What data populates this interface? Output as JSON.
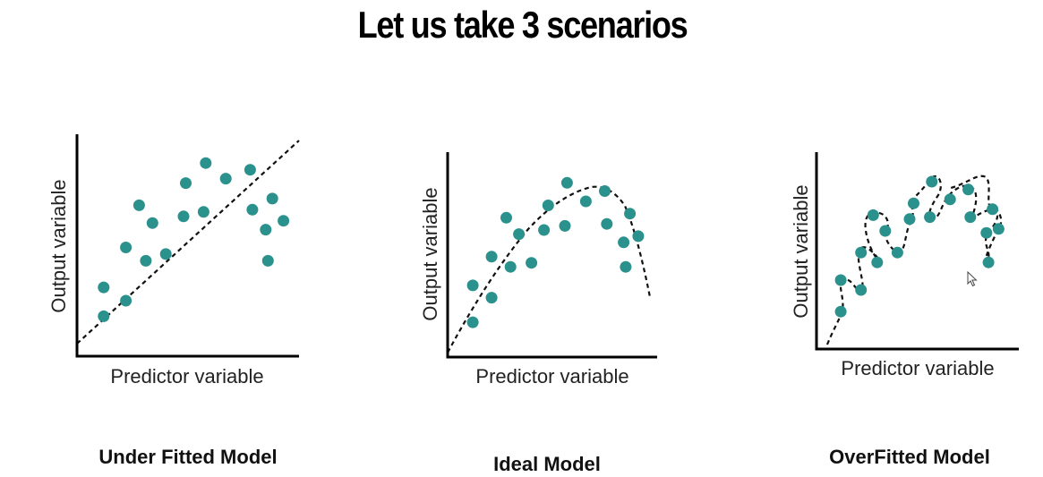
{
  "page": {
    "title": "Let us take 3 scenarios"
  },
  "colors": {
    "point": "#2b918d",
    "axis": "#000000",
    "curve": "#111111"
  },
  "chart_data": [
    {
      "type": "scatter",
      "caption": "Under Fitted Model",
      "xlabel": "Predictor variable",
      "ylabel": "Output variable",
      "xlim": [
        0,
        10
      ],
      "ylim": [
        0,
        10
      ],
      "grid": false,
      "fit_line": "straight dashed line",
      "points": [
        {
          "x": 1.2,
          "y": 1.8
        },
        {
          "x": 1.2,
          "y": 3.1
        },
        {
          "x": 2.2,
          "y": 2.5
        },
        {
          "x": 2.2,
          "y": 4.9
        },
        {
          "x": 2.8,
          "y": 6.8
        },
        {
          "x": 3.1,
          "y": 4.3
        },
        {
          "x": 3.4,
          "y": 6.0
        },
        {
          "x": 4.0,
          "y": 4.6
        },
        {
          "x": 4.8,
          "y": 6.3
        },
        {
          "x": 4.9,
          "y": 7.8
        },
        {
          "x": 5.7,
          "y": 6.5
        },
        {
          "x": 5.8,
          "y": 8.7
        },
        {
          "x": 6.7,
          "y": 8.0
        },
        {
          "x": 7.8,
          "y": 8.4
        },
        {
          "x": 7.9,
          "y": 6.6
        },
        {
          "x": 8.5,
          "y": 5.7
        },
        {
          "x": 8.6,
          "y": 4.3
        },
        {
          "x": 8.8,
          "y": 7.1
        },
        {
          "x": 9.3,
          "y": 6.1
        }
      ]
    },
    {
      "type": "scatter",
      "caption": "Ideal Model",
      "xlabel": "Predictor variable",
      "ylabel": "Output variable",
      "xlim": [
        0,
        10
      ],
      "ylim": [
        0,
        10
      ],
      "grid": false,
      "fit_line": "dashed curve rising then falling",
      "points": [
        {
          "x": 1.2,
          "y": 1.7
        },
        {
          "x": 1.2,
          "y": 3.5
        },
        {
          "x": 2.1,
          "y": 2.9
        },
        {
          "x": 2.1,
          "y": 4.9
        },
        {
          "x": 2.8,
          "y": 6.8
        },
        {
          "x": 3.0,
          "y": 4.4
        },
        {
          "x": 3.4,
          "y": 6.0
        },
        {
          "x": 4.0,
          "y": 4.6
        },
        {
          "x": 4.6,
          "y": 6.2
        },
        {
          "x": 4.8,
          "y": 7.4
        },
        {
          "x": 5.6,
          "y": 6.4
        },
        {
          "x": 5.7,
          "y": 8.5
        },
        {
          "x": 6.6,
          "y": 7.6
        },
        {
          "x": 7.5,
          "y": 8.1
        },
        {
          "x": 7.6,
          "y": 6.5
        },
        {
          "x": 8.4,
          "y": 5.6
        },
        {
          "x": 8.5,
          "y": 4.4
        },
        {
          "x": 8.7,
          "y": 7.0
        },
        {
          "x": 9.1,
          "y": 5.9
        }
      ]
    },
    {
      "type": "scatter",
      "caption": "OverFitted Model",
      "xlabel": "Predictor variable",
      "ylabel": "Output variable",
      "xlim": [
        0,
        10
      ],
      "ylim": [
        0,
        10
      ],
      "grid": false,
      "fit_line": "dashed wiggly curve through every point",
      "points": [
        {
          "x": 1.2,
          "y": 1.9
        },
        {
          "x": 1.2,
          "y": 3.5
        },
        {
          "x": 2.2,
          "y": 3.0
        },
        {
          "x": 2.2,
          "y": 4.9
        },
        {
          "x": 2.8,
          "y": 6.8
        },
        {
          "x": 3.0,
          "y": 4.4
        },
        {
          "x": 3.4,
          "y": 6.0
        },
        {
          "x": 4.0,
          "y": 4.9
        },
        {
          "x": 4.6,
          "y": 6.6
        },
        {
          "x": 4.8,
          "y": 7.4
        },
        {
          "x": 5.6,
          "y": 6.7
        },
        {
          "x": 5.7,
          "y": 8.5
        },
        {
          "x": 6.6,
          "y": 7.6
        },
        {
          "x": 7.5,
          "y": 8.1
        },
        {
          "x": 7.6,
          "y": 6.7
        },
        {
          "x": 8.4,
          "y": 5.9
        },
        {
          "x": 8.5,
          "y": 4.4
        },
        {
          "x": 8.7,
          "y": 7.1
        },
        {
          "x": 9.0,
          "y": 6.1
        }
      ]
    }
  ]
}
